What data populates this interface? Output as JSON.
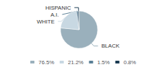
{
  "chart_data": {
    "type": "pie",
    "categories": [
      "BLACK",
      "WHITE",
      "A.I.",
      "HISPANIC"
    ],
    "values": [
      76.5,
      21.2,
      1.5,
      0.8
    ],
    "value_labels": [
      "76.5%",
      "21.2%",
      "1.5%",
      "0.8%"
    ],
    "colors": [
      "#9ab0bc",
      "#c8d8e2",
      "#5a7f96",
      "#1a3a52"
    ],
    "legend": "bottom"
  }
}
